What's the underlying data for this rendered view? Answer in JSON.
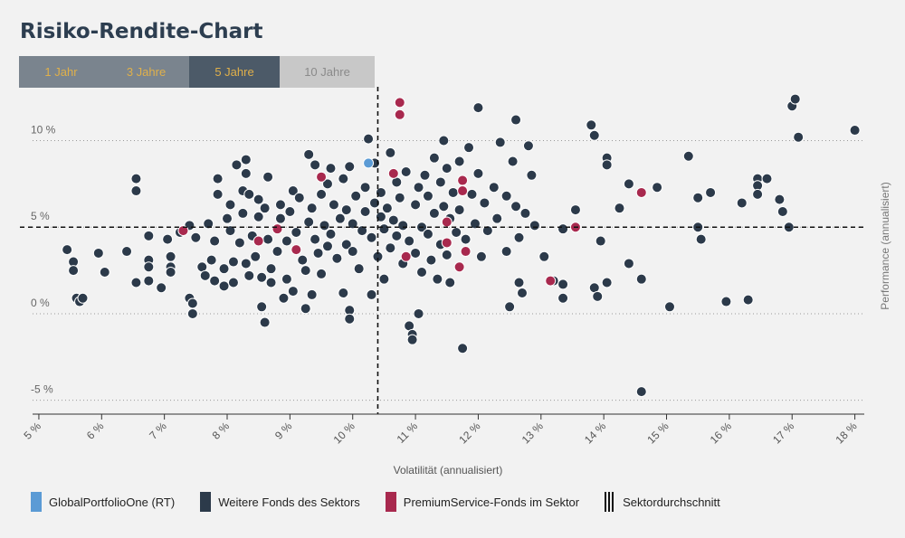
{
  "title": "Risiko-Rendite-Chart",
  "tabs": [
    {
      "label": "1 Jahr",
      "state": "normal"
    },
    {
      "label": "3 Jahre",
      "state": "normal"
    },
    {
      "label": "5 Jahre",
      "state": "active"
    },
    {
      "label": "10 Jahre",
      "state": "disabled"
    }
  ],
  "legend": [
    {
      "label": "GlobalPortfolioOne (RT)",
      "color": "#5b9bd5"
    },
    {
      "label": "Weitere Fonds des Sektors",
      "color": "#2c3a4a"
    },
    {
      "label": "PremiumService-Fonds im Sektor",
      "color": "#a8294e"
    },
    {
      "label": "Sektordurchschnitt",
      "color": "#111111"
    }
  ],
  "chart_data": {
    "type": "scatter",
    "xlabel": "Volatilität (annualisiert)",
    "ylabel": "Performance (annualisiert)",
    "xlim": [
      4.9,
      18.15
    ],
    "ylim": [
      -5.8,
      12.9
    ],
    "x_ticks": [
      5,
      6,
      7,
      8,
      9,
      10,
      11,
      12,
      13,
      14,
      15,
      16,
      17,
      18
    ],
    "x_tick_labels": [
      "5 %",
      "6 %",
      "7 %",
      "8 %",
      "9 %",
      "10 %",
      "11 %",
      "12 %",
      "13 %",
      "14 %",
      "15 %",
      "16 %",
      "17 %",
      "18 %"
    ],
    "y_ticks": [
      10,
      5,
      0,
      -5
    ],
    "y_tick_labels": [
      "10 %",
      "5 %",
      "0 %",
      "-5 %"
    ],
    "grid": "horizontal dotted",
    "sector_average": {
      "x": 10.4,
      "y": 5.0
    },
    "series": [
      {
        "name": "GlobalPortfolioOne (RT)",
        "color": "#5b9bd5",
        "points": [
          [
            10.25,
            8.7
          ]
        ]
      },
      {
        "name": "PremiumService-Fonds im Sektor",
        "color": "#a8294e",
        "points": [
          [
            10.75,
            12.2
          ],
          [
            10.75,
            11.5
          ],
          [
            10.65,
            8.1
          ],
          [
            9.5,
            7.9
          ],
          [
            7.3,
            4.8
          ],
          [
            8.8,
            4.9
          ],
          [
            8.5,
            4.2
          ],
          [
            9.1,
            3.7
          ],
          [
            10.85,
            3.3
          ],
          [
            11.5,
            5.3
          ],
          [
            11.5,
            4.1
          ],
          [
            11.75,
            7.7
          ],
          [
            11.75,
            7.1
          ],
          [
            11.7,
            2.7
          ],
          [
            11.8,
            3.6
          ],
          [
            13.15,
            1.9
          ],
          [
            13.55,
            5.0
          ],
          [
            14.6,
            7.0
          ]
        ]
      },
      {
        "name": "Weitere Fonds des Sektors",
        "color": "#2c3a4a",
        "points": [
          [
            5.45,
            3.7
          ],
          [
            5.55,
            3.0
          ],
          [
            5.55,
            2.5
          ],
          [
            5.6,
            0.9
          ],
          [
            5.65,
            0.7
          ],
          [
            5.7,
            0.9
          ],
          [
            5.95,
            3.5
          ],
          [
            6.05,
            2.4
          ],
          [
            6.4,
            3.6
          ],
          [
            6.55,
            7.8
          ],
          [
            6.55,
            7.1
          ],
          [
            6.55,
            1.8
          ],
          [
            6.75,
            4.5
          ],
          [
            6.75,
            3.1
          ],
          [
            6.75,
            2.7
          ],
          [
            6.75,
            1.9
          ],
          [
            6.95,
            1.5
          ],
          [
            7.05,
            4.3
          ],
          [
            7.1,
            3.3
          ],
          [
            7.1,
            2.7
          ],
          [
            7.1,
            2.4
          ],
          [
            7.25,
            4.7
          ],
          [
            7.4,
            5.1
          ],
          [
            7.4,
            0.9
          ],
          [
            7.45,
            0.6
          ],
          [
            7.45,
            0.0
          ],
          [
            7.5,
            4.4
          ],
          [
            7.6,
            2.7
          ],
          [
            7.65,
            2.2
          ],
          [
            7.7,
            5.2
          ],
          [
            7.75,
            3.1
          ],
          [
            7.8,
            4.2
          ],
          [
            7.8,
            1.9
          ],
          [
            7.85,
            6.9
          ],
          [
            7.85,
            7.8
          ],
          [
            7.95,
            2.6
          ],
          [
            7.95,
            1.6
          ],
          [
            8.0,
            5.5
          ],
          [
            8.05,
            4.8
          ],
          [
            8.05,
            6.3
          ],
          [
            8.1,
            3.0
          ],
          [
            8.1,
            1.8
          ],
          [
            8.15,
            8.6
          ],
          [
            8.2,
            4.1
          ],
          [
            8.25,
            7.1
          ],
          [
            8.25,
            5.8
          ],
          [
            8.3,
            8.9
          ],
          [
            8.3,
            8.1
          ],
          [
            8.3,
            2.9
          ],
          [
            8.35,
            2.2
          ],
          [
            8.35,
            6.9
          ],
          [
            8.4,
            4.5
          ],
          [
            8.45,
            3.3
          ],
          [
            8.5,
            5.6
          ],
          [
            8.5,
            6.6
          ],
          [
            8.55,
            2.1
          ],
          [
            8.55,
            0.4
          ],
          [
            8.6,
            -0.5
          ],
          [
            8.6,
            6.1
          ],
          [
            8.65,
            4.3
          ],
          [
            8.65,
            7.9
          ],
          [
            8.7,
            2.6
          ],
          [
            8.7,
            1.8
          ],
          [
            8.8,
            3.6
          ],
          [
            8.85,
            5.5
          ],
          [
            8.85,
            6.3
          ],
          [
            8.9,
            0.9
          ],
          [
            8.95,
            4.2
          ],
          [
            8.95,
            2.0
          ],
          [
            9.0,
            5.9
          ],
          [
            9.05,
            7.1
          ],
          [
            9.05,
            1.3
          ],
          [
            9.1,
            4.7
          ],
          [
            9.15,
            6.7
          ],
          [
            9.2,
            3.1
          ],
          [
            9.25,
            2.5
          ],
          [
            9.25,
            0.3
          ],
          [
            9.3,
            9.2
          ],
          [
            9.3,
            5.3
          ],
          [
            9.35,
            6.1
          ],
          [
            9.35,
            1.1
          ],
          [
            9.4,
            8.6
          ],
          [
            9.4,
            4.3
          ],
          [
            9.45,
            3.5
          ],
          [
            9.5,
            6.9
          ],
          [
            9.5,
            2.3
          ],
          [
            9.55,
            5.1
          ],
          [
            9.6,
            7.5
          ],
          [
            9.6,
            3.9
          ],
          [
            9.65,
            8.4
          ],
          [
            9.65,
            4.6
          ],
          [
            9.7,
            6.3
          ],
          [
            9.75,
            3.2
          ],
          [
            9.8,
            5.5
          ],
          [
            9.85,
            7.8
          ],
          [
            9.85,
            1.2
          ],
          [
            9.9,
            4.0
          ],
          [
            9.9,
            6.0
          ],
          [
            9.95,
            8.5
          ],
          [
            9.95,
            0.2
          ],
          [
            9.95,
            -0.3
          ],
          [
            10.0,
            5.2
          ],
          [
            10.0,
            3.6
          ],
          [
            10.05,
            6.8
          ],
          [
            10.1,
            2.6
          ],
          [
            10.15,
            4.8
          ],
          [
            10.2,
            7.3
          ],
          [
            10.2,
            5.9
          ],
          [
            10.25,
            10.1
          ],
          [
            10.3,
            4.4
          ],
          [
            10.3,
            1.1
          ],
          [
            10.35,
            6.4
          ],
          [
            10.35,
            8.7
          ],
          [
            10.4,
            3.3
          ],
          [
            10.45,
            5.6
          ],
          [
            10.45,
            7.0
          ],
          [
            10.5,
            4.9
          ],
          [
            10.5,
            2.0
          ],
          [
            10.55,
            6.1
          ],
          [
            10.6,
            3.8
          ],
          [
            10.6,
            9.3
          ],
          [
            10.65,
            5.4
          ],
          [
            10.7,
            7.6
          ],
          [
            10.7,
            4.5
          ],
          [
            10.75,
            6.7
          ],
          [
            10.8,
            2.9
          ],
          [
            10.8,
            5.1
          ],
          [
            10.85,
            8.2
          ],
          [
            10.9,
            4.2
          ],
          [
            10.9,
            -0.7
          ],
          [
            10.95,
            -1.2
          ],
          [
            10.95,
            -1.5
          ],
          [
            11.0,
            6.3
          ],
          [
            11.0,
            3.5
          ],
          [
            11.05,
            7.3
          ],
          [
            11.05,
            0.0
          ],
          [
            11.1,
            5.0
          ],
          [
            11.1,
            2.4
          ],
          [
            11.15,
            8.0
          ],
          [
            11.2,
            4.6
          ],
          [
            11.2,
            6.8
          ],
          [
            11.25,
            3.1
          ],
          [
            11.3,
            5.8
          ],
          [
            11.3,
            9.0
          ],
          [
            11.35,
            2.0
          ],
          [
            11.4,
            7.6
          ],
          [
            11.4,
            4.0
          ],
          [
            11.45,
            10.0
          ],
          [
            11.45,
            6.2
          ],
          [
            11.5,
            8.4
          ],
          [
            11.5,
            3.4
          ],
          [
            11.55,
            5.5
          ],
          [
            11.55,
            1.8
          ],
          [
            11.6,
            7.0
          ],
          [
            11.65,
            4.7
          ],
          [
            11.7,
            8.8
          ],
          [
            11.7,
            6.0
          ],
          [
            11.75,
            -2.0
          ],
          [
            11.8,
            4.3
          ],
          [
            11.85,
            9.6
          ],
          [
            11.9,
            6.9
          ],
          [
            11.95,
            5.2
          ],
          [
            12.0,
            11.9
          ],
          [
            12.0,
            8.1
          ],
          [
            12.05,
            3.3
          ],
          [
            12.1,
            6.4
          ],
          [
            12.15,
            4.8
          ],
          [
            12.25,
            7.3
          ],
          [
            12.3,
            5.5
          ],
          [
            12.35,
            9.9
          ],
          [
            12.45,
            3.6
          ],
          [
            12.45,
            6.8
          ],
          [
            12.5,
            0.4
          ],
          [
            12.55,
            8.8
          ],
          [
            12.6,
            11.2
          ],
          [
            12.6,
            6.2
          ],
          [
            12.65,
            4.4
          ],
          [
            12.65,
            1.8
          ],
          [
            12.7,
            1.2
          ],
          [
            12.75,
            5.8
          ],
          [
            12.8,
            9.7
          ],
          [
            12.85,
            8.0
          ],
          [
            12.9,
            5.1
          ],
          [
            13.05,
            3.3
          ],
          [
            13.2,
            1.9
          ],
          [
            13.35,
            1.7
          ],
          [
            13.35,
            4.9
          ],
          [
            13.35,
            0.9
          ],
          [
            13.55,
            6.0
          ],
          [
            13.8,
            10.9
          ],
          [
            13.85,
            10.3
          ],
          [
            13.85,
            1.5
          ],
          [
            13.9,
            1.0
          ],
          [
            13.95,
            4.2
          ],
          [
            14.05,
            9.0
          ],
          [
            14.05,
            8.6
          ],
          [
            14.05,
            1.8
          ],
          [
            14.25,
            6.1
          ],
          [
            14.4,
            2.9
          ],
          [
            14.4,
            7.5
          ],
          [
            14.6,
            -4.5
          ],
          [
            14.6,
            2.0
          ],
          [
            14.85,
            7.3
          ],
          [
            15.05,
            0.4
          ],
          [
            15.35,
            9.1
          ],
          [
            15.5,
            6.7
          ],
          [
            15.5,
            5.0
          ],
          [
            15.55,
            4.3
          ],
          [
            15.7,
            7.0
          ],
          [
            15.95,
            0.7
          ],
          [
            16.2,
            6.4
          ],
          [
            16.3,
            0.8
          ],
          [
            16.45,
            7.8
          ],
          [
            16.45,
            7.4
          ],
          [
            16.45,
            6.9
          ],
          [
            16.6,
            7.8
          ],
          [
            16.8,
            6.6
          ],
          [
            16.85,
            5.9
          ],
          [
            16.95,
            5.0
          ],
          [
            17.0,
            12.0
          ],
          [
            17.05,
            12.4
          ],
          [
            17.1,
            10.2
          ],
          [
            18.0,
            10.6
          ]
        ]
      }
    ]
  }
}
